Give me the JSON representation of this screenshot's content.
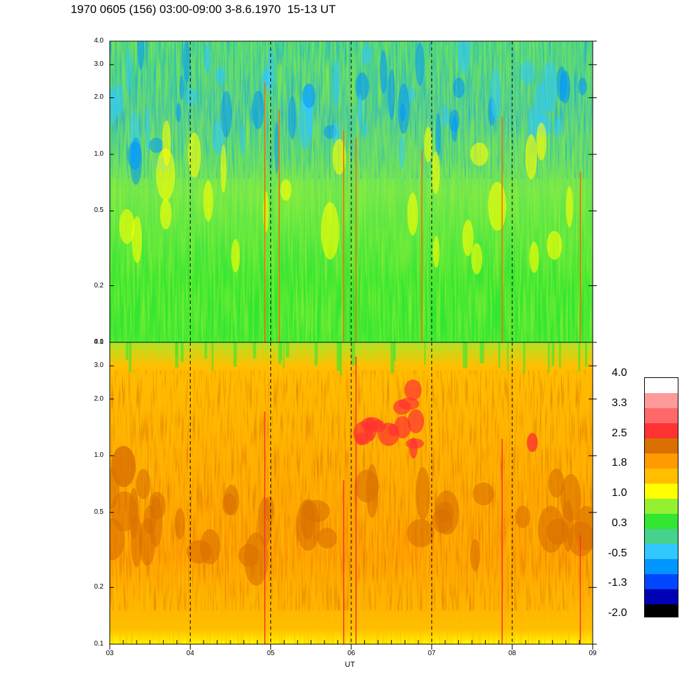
{
  "title": "1970 0605 (156) 03:00-09:00 3-8.6.1970  15-13 UT",
  "chart_data": {
    "type": "heatmap",
    "description_of_axes": "time (UT hours) vs frequency, two stacked spectrogram panels",
    "xlabel": "UT",
    "x_ticks": [
      "03",
      "04",
      "05",
      "06",
      "07",
      "08",
      "09"
    ],
    "xlim": [
      3,
      9
    ],
    "dashed_hour_lines": [
      4,
      5,
      6,
      7,
      8
    ],
    "panels": [
      {
        "name": "upper",
        "y_scale": "log",
        "ylim": [
          0.1,
          4.0
        ],
        "y_ticks": [
          {
            "value": 4.0,
            "label": "4.0"
          },
          {
            "value": 3.0,
            "label": "3.0"
          },
          {
            "value": 2.0,
            "label": "2.0"
          },
          {
            "value": 1.0,
            "label": "1.0"
          },
          {
            "value": 0.5,
            "label": "0.5"
          },
          {
            "value": 0.2,
            "label": "0.2"
          },
          {
            "value": 0.1,
            "label": "0.1"
          }
        ],
        "dominant_levels": "green / cyan at high frequencies, yellow-green at low frequencies"
      },
      {
        "name": "lower",
        "y_scale": "log",
        "ylim": [
          0.1,
          4.0
        ],
        "y_ticks": [
          {
            "value": 4.0,
            "label": "4.0"
          },
          {
            "value": 3.0,
            "label": "3.0"
          },
          {
            "value": 2.0,
            "label": "2.0"
          },
          {
            "value": 1.0,
            "label": "1.0"
          },
          {
            "value": 0.5,
            "label": "0.5"
          },
          {
            "value": 0.2,
            "label": "0.2"
          },
          {
            "value": 0.1,
            "label": "0.1"
          }
        ],
        "dominant_levels": "orange / yellow with dark orange and red patches"
      }
    ],
    "colorbar": {
      "labels": [
        "4.0",
        "3.3",
        "2.5",
        "1.8",
        "1.0",
        "0.3",
        "-0.5",
        "-1.3",
        "-2.0"
      ],
      "colors_top_to_bottom": [
        "#ffffff",
        "#ff9a9a",
        "#ff6868",
        "#ff3232",
        "#d97000",
        "#ff9a00",
        "#ffbe00",
        "#ffff00",
        "#96f032",
        "#32e632",
        "#46d28c",
        "#32c8ff",
        "#0096ff",
        "#0046ff",
        "#0000b4",
        "#000000"
      ]
    }
  }
}
